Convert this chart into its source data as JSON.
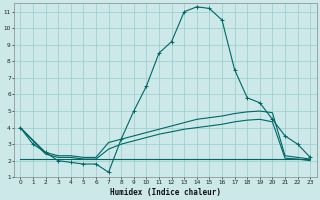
{
  "xlabel": "Humidex (Indice chaleur)",
  "bg_color": "#cce8e8",
  "grid_color": "#99cccc",
  "line_color": "#006666",
  "xlim": [
    -0.5,
    23.5
  ],
  "ylim": [
    1,
    11.5
  ],
  "xticks": [
    0,
    1,
    2,
    3,
    4,
    5,
    6,
    7,
    8,
    9,
    10,
    11,
    12,
    13,
    14,
    15,
    16,
    17,
    18,
    19,
    20,
    21,
    22,
    23
  ],
  "yticks": [
    1,
    2,
    3,
    4,
    5,
    6,
    7,
    8,
    9,
    10,
    11
  ],
  "line1_x": [
    0,
    1,
    2,
    3,
    4,
    5,
    6,
    7,
    8,
    9,
    10,
    11,
    12,
    13,
    14,
    15,
    16,
    17,
    18,
    19,
    20,
    21,
    22,
    23
  ],
  "line1_y": [
    4.0,
    3.0,
    2.5,
    2.0,
    1.9,
    1.8,
    1.8,
    1.3,
    3.3,
    5.0,
    6.5,
    8.5,
    9.2,
    11.0,
    11.3,
    11.2,
    10.5,
    7.5,
    5.8,
    5.5,
    4.5,
    3.5,
    3.0,
    2.2
  ],
  "line2_x": [
    0,
    2,
    3,
    4,
    5,
    6,
    7,
    8,
    9,
    10,
    11,
    12,
    13,
    14,
    15,
    16,
    17,
    18,
    19,
    20,
    21,
    22,
    23
  ],
  "line2_y": [
    4.0,
    2.5,
    2.3,
    2.3,
    2.2,
    2.2,
    3.1,
    3.3,
    3.5,
    3.7,
    3.9,
    4.1,
    4.3,
    4.5,
    4.6,
    4.7,
    4.85,
    4.95,
    5.0,
    4.9,
    2.3,
    2.2,
    2.1
  ],
  "line3_x": [
    0,
    2,
    3,
    4,
    5,
    6,
    7,
    8,
    9,
    10,
    11,
    12,
    13,
    14,
    15,
    16,
    17,
    18,
    19,
    20,
    21,
    22,
    23
  ],
  "line3_y": [
    4.0,
    2.4,
    2.2,
    2.2,
    2.1,
    2.1,
    2.7,
    3.0,
    3.2,
    3.4,
    3.6,
    3.75,
    3.9,
    4.0,
    4.1,
    4.2,
    4.35,
    4.45,
    4.5,
    4.35,
    2.15,
    2.1,
    2.0
  ],
  "line4_x": [
    0,
    23
  ],
  "line4_y": [
    2.1,
    2.1
  ]
}
